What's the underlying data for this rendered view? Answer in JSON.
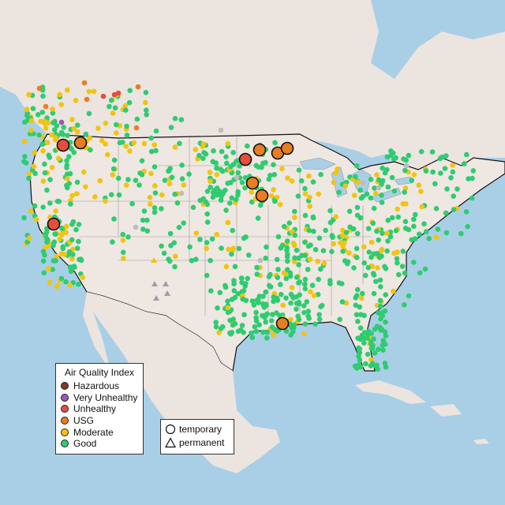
{
  "legend": {
    "title": "Air Quality Index",
    "categories": [
      {
        "label": "Hazardous",
        "color": "#7e3a2a"
      },
      {
        "label": "Very Unhealthy",
        "color": "#9b59b6"
      },
      {
        "label": "Unhealthy",
        "color": "#e74c3c"
      },
      {
        "label": "USG",
        "color": "#e67e22"
      },
      {
        "label": "Moderate",
        "color": "#f1c40f"
      },
      {
        "label": "Good",
        "color": "#2ecc71"
      }
    ]
  },
  "type_legend": {
    "items": [
      {
        "label": "temporary",
        "shape": "circle"
      },
      {
        "label": "permanent",
        "shape": "triangle"
      }
    ]
  },
  "colors": {
    "ocean": "#a9cfe6",
    "land": "#efe7e2",
    "no_data_monitor": "#bdbdbd"
  }
}
